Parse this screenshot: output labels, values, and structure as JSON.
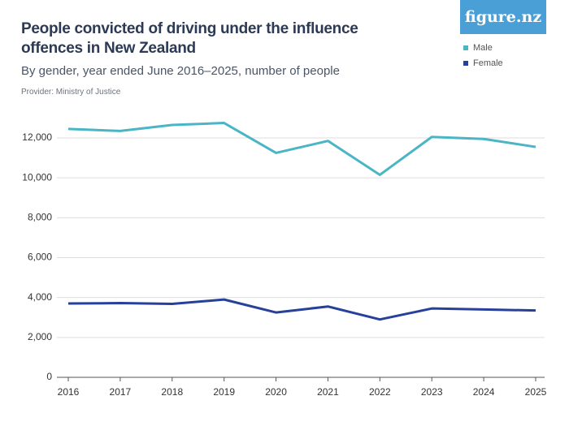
{
  "logo": "figure.nz",
  "chart_data": {
    "type": "line",
    "title": "People convicted of driving under the influence offences in New Zealand",
    "subtitle": "By gender, year ended June 2016–2025, number of people",
    "provider": "Provider: Ministry of Justice",
    "categories": [
      "2016",
      "2017",
      "2018",
      "2019",
      "2020",
      "2021",
      "2022",
      "2023",
      "2024",
      "2025"
    ],
    "series": [
      {
        "name": "Male",
        "color": "#4ab5c4",
        "values": [
          12450,
          12350,
          12650,
          12750,
          11250,
          11850,
          10150,
          12050,
          11950,
          11550
        ]
      },
      {
        "name": "Female",
        "color": "#27409a",
        "values": [
          3700,
          3720,
          3680,
          3900,
          3250,
          3550,
          2900,
          3450,
          3400,
          3350
        ]
      }
    ],
    "ylim": [
      0,
      13000
    ],
    "yticks": [
      0,
      {
        "value": 2000,
        "label": "2,000"
      },
      {
        "value": 4000,
        "label": "4,000"
      },
      {
        "value": 6000,
        "label": "6,000"
      },
      {
        "value": 8000,
        "label": "8,000"
      },
      {
        "value": 10000,
        "label": "10,000"
      },
      {
        "value": 12000,
        "label": "12,000"
      }
    ],
    "grid": true,
    "legend": "top-right"
  }
}
